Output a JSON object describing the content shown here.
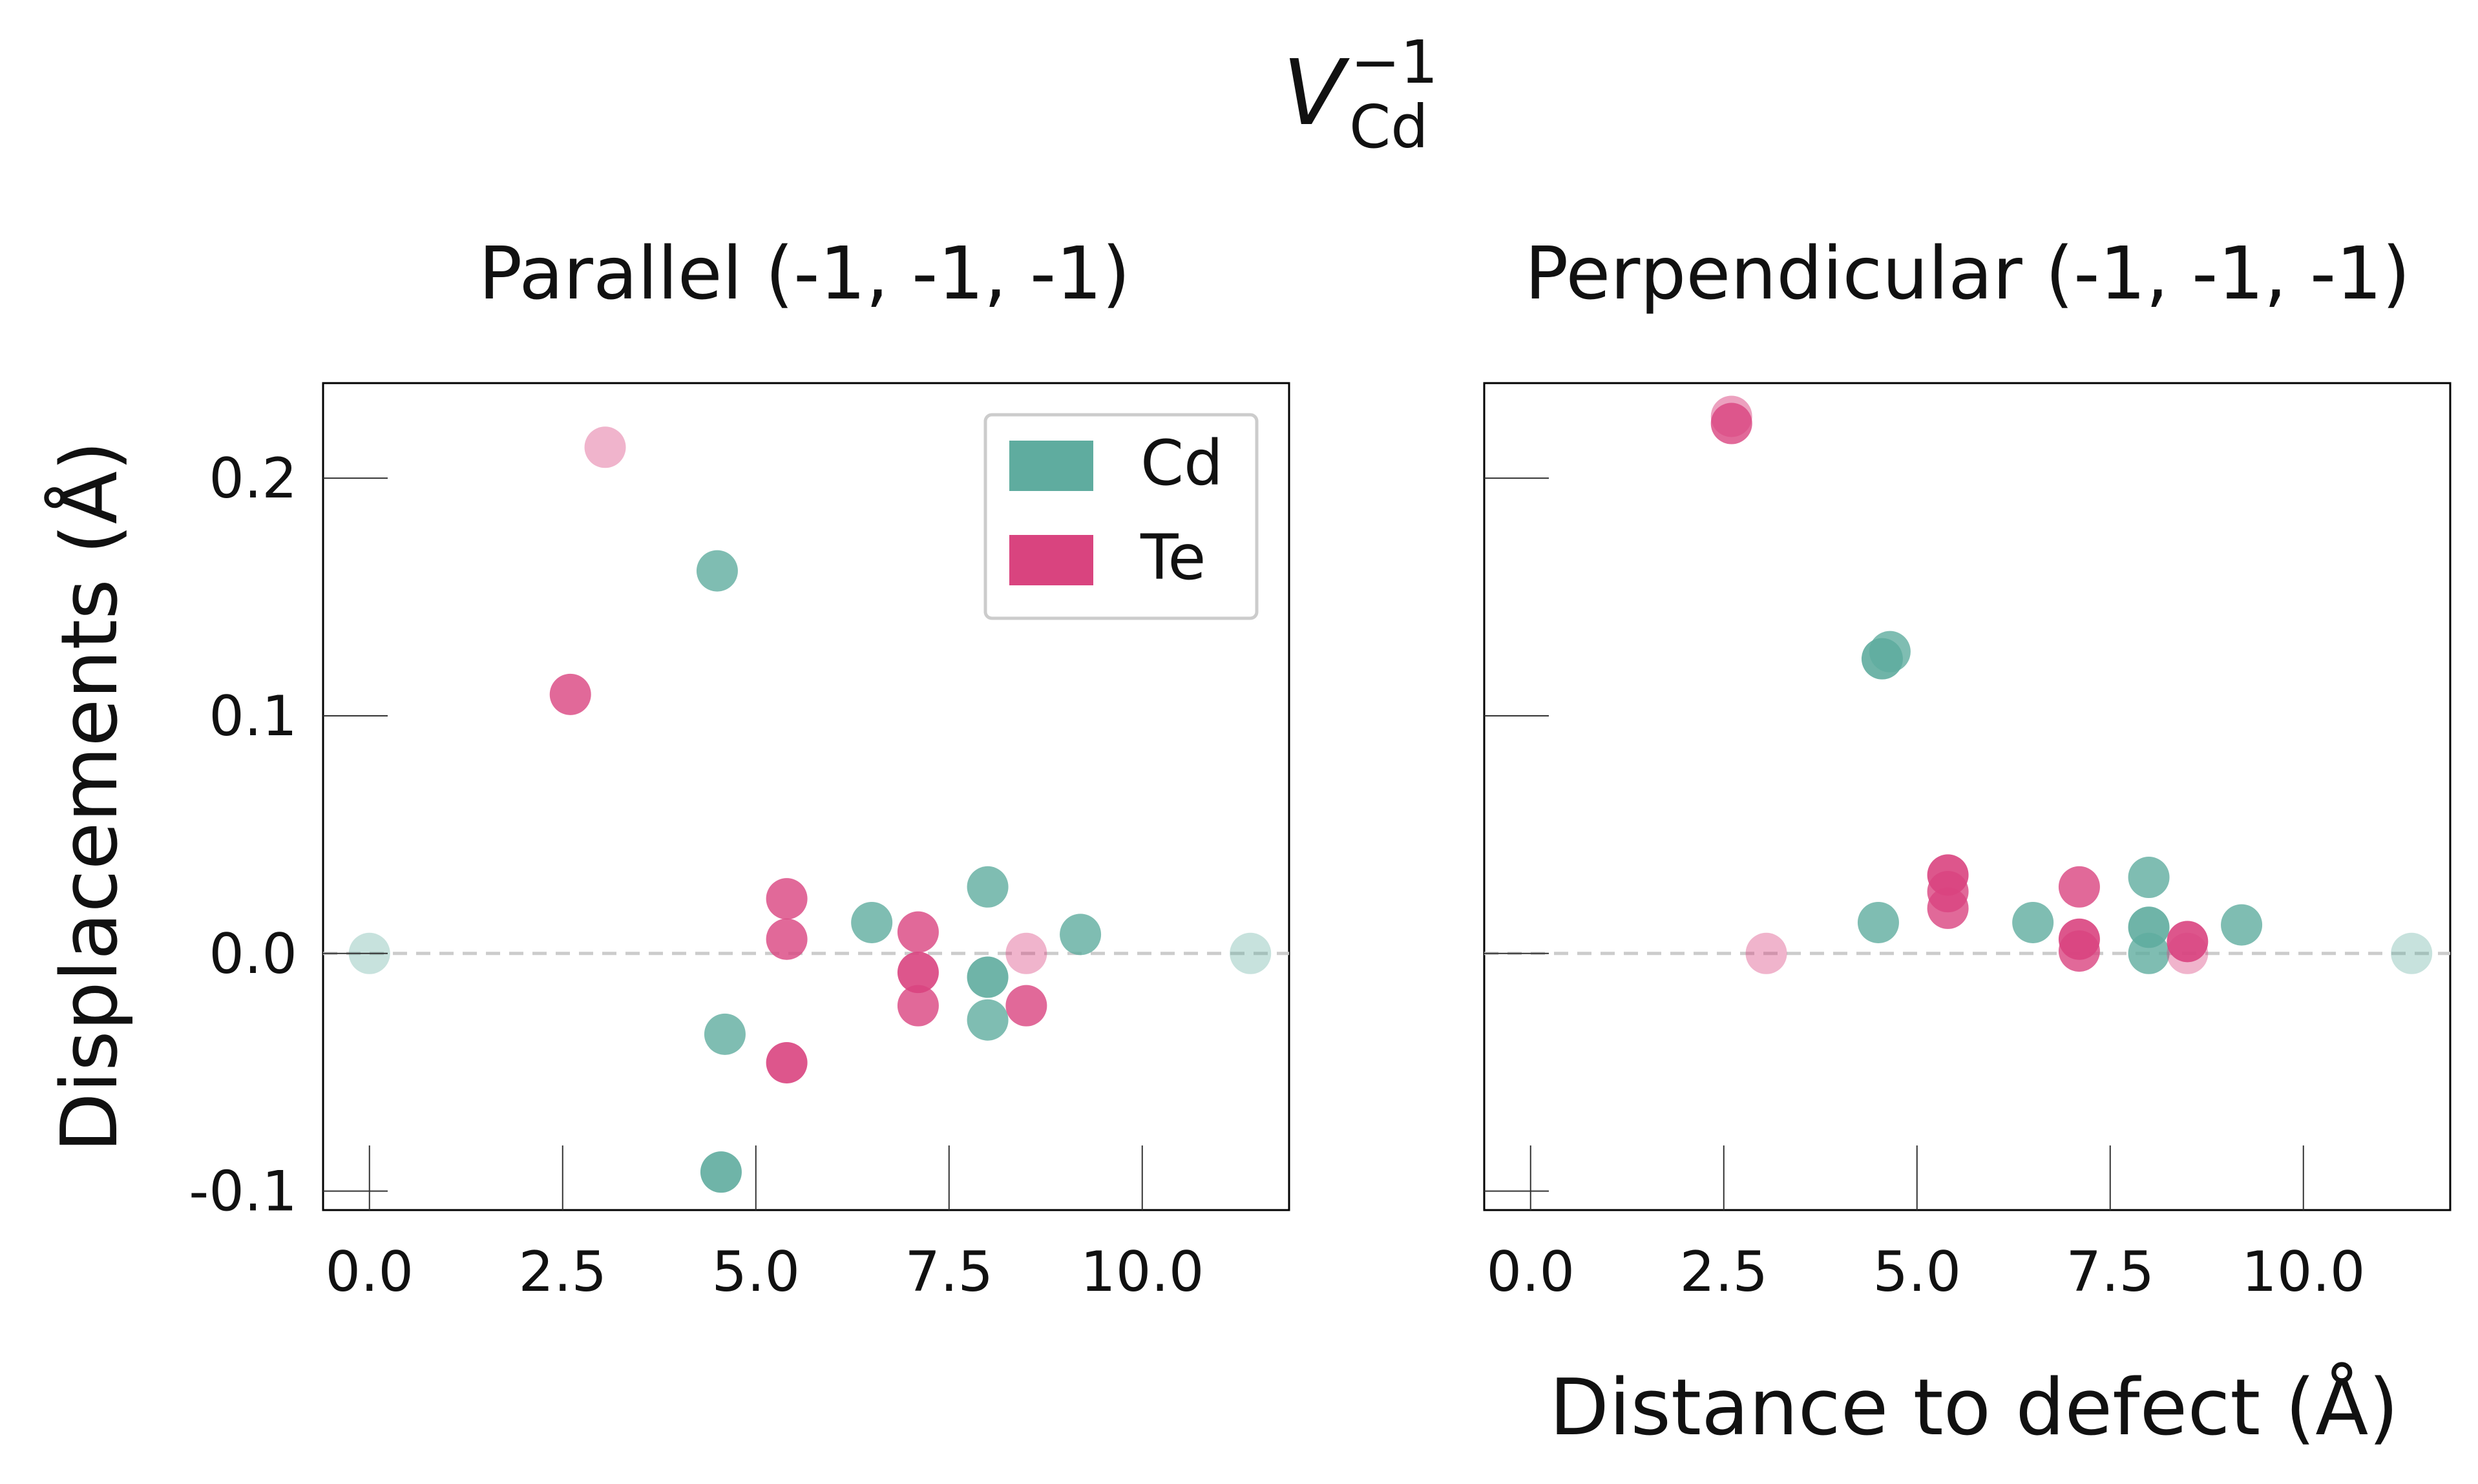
{
  "figure": {
    "title_main": "V",
    "title_sup": "−1",
    "title_sub": "Cd",
    "xlabel": "Distance to defect (Å)",
    "ylabel": "Displacements (Å)"
  },
  "colors": {
    "Cd": "#5fac9f",
    "Te": "#d9447f",
    "zero_line": "#cccccc",
    "axis": "#000000"
  },
  "legend": {
    "placement": "upper-right",
    "entries": [
      {
        "label": "Cd",
        "color": "#5fac9f"
      },
      {
        "label": "Te",
        "color": "#d9447f"
      }
    ]
  },
  "chart_data": [
    {
      "type": "scatter",
      "title": "Parallel (-1, -1, -1)",
      "xlim": [
        -0.6,
        11.9
      ],
      "ylim": [
        -0.108,
        0.24
      ],
      "xticks": [
        0.0,
        2.5,
        5.0,
        7.5,
        10.0
      ],
      "xtick_labels": [
        "0.0",
        "2.5",
        "5.0",
        "7.5",
        "10.0"
      ],
      "yticks": [
        0.2,
        0.1,
        0.0,
        -0.1
      ],
      "ytick_labels": [
        "0.2",
        "0.1",
        "0.0",
        "-0.1"
      ],
      "series": [
        {
          "name": "Cd",
          "points": [
            {
              "x": 0.0,
              "y": 0.0,
              "alpha": 0.35
            },
            {
              "x": 4.5,
              "y": 0.161,
              "alpha": 0.8
            },
            {
              "x": 4.6,
              "y": -0.034,
              "alpha": 0.8
            },
            {
              "x": 4.55,
              "y": -0.092,
              "alpha": 0.9
            },
            {
              "x": 6.5,
              "y": 0.013,
              "alpha": 0.8
            },
            {
              "x": 8.0,
              "y": 0.028,
              "alpha": 0.8
            },
            {
              "x": 8.0,
              "y": -0.01,
              "alpha": 0.9
            },
            {
              "x": 8.0,
              "y": -0.028,
              "alpha": 0.8
            },
            {
              "x": 9.2,
              "y": 0.008,
              "alpha": 0.8
            },
            {
              "x": 11.4,
              "y": 0.0,
              "alpha": 0.35
            }
          ]
        },
        {
          "name": "Te",
          "points": [
            {
              "x": 3.05,
              "y": 0.213,
              "alpha": 0.4
            },
            {
              "x": 2.6,
              "y": 0.109,
              "alpha": 0.8
            },
            {
              "x": 5.4,
              "y": 0.023,
              "alpha": 0.8
            },
            {
              "x": 5.4,
              "y": 0.006,
              "alpha": 0.8
            },
            {
              "x": 5.4,
              "y": -0.046,
              "alpha": 0.9
            },
            {
              "x": 7.1,
              "y": 0.009,
              "alpha": 0.8
            },
            {
              "x": 7.1,
              "y": -0.008,
              "alpha": 0.9
            },
            {
              "x": 7.1,
              "y": -0.022,
              "alpha": 0.8
            },
            {
              "x": 8.5,
              "y": 0.0,
              "alpha": 0.4
            },
            {
              "x": 8.5,
              "y": -0.022,
              "alpha": 0.8
            }
          ]
        }
      ]
    },
    {
      "type": "scatter",
      "title": "Perpendicular (-1, -1, -1)",
      "xlim": [
        -0.6,
        11.9
      ],
      "ylim": [
        -0.108,
        0.24
      ],
      "xticks": [
        0.0,
        2.5,
        5.0,
        7.5,
        10.0
      ],
      "xtick_labels": [
        "0.0",
        "2.5",
        "5.0",
        "7.5",
        "10.0"
      ],
      "yticks": [
        0.2,
        0.1,
        0.0,
        -0.1
      ],
      "ytick_labels": [
        "",
        "",
        "",
        ""
      ],
      "series": [
        {
          "name": "Cd",
          "points": [
            {
              "x": 4.55,
              "y": 0.124,
              "alpha": 0.9
            },
            {
              "x": 4.65,
              "y": 0.127,
              "alpha": 0.8
            },
            {
              "x": 4.5,
              "y": 0.013,
              "alpha": 0.8
            },
            {
              "x": 6.5,
              "y": 0.013,
              "alpha": 0.8
            },
            {
              "x": 8.0,
              "y": 0.032,
              "alpha": 0.8
            },
            {
              "x": 8.0,
              "y": 0.011,
              "alpha": 0.9
            },
            {
              "x": 8.0,
              "y": 0.0,
              "alpha": 0.8
            },
            {
              "x": 9.2,
              "y": 0.012,
              "alpha": 0.8
            },
            {
              "x": 11.4,
              "y": 0.0,
              "alpha": 0.35
            }
          ]
        },
        {
          "name": "Te",
          "points": [
            {
              "x": 2.6,
              "y": 0.226,
              "alpha": 0.5
            },
            {
              "x": 2.6,
              "y": 0.223,
              "alpha": 0.8
            },
            {
              "x": 3.05,
              "y": 0.0,
              "alpha": 0.4
            },
            {
              "x": 5.4,
              "y": 0.033,
              "alpha": 0.9
            },
            {
              "x": 5.4,
              "y": 0.026,
              "alpha": 0.8
            },
            {
              "x": 5.4,
              "y": 0.019,
              "alpha": 0.8
            },
            {
              "x": 7.1,
              "y": 0.028,
              "alpha": 0.8
            },
            {
              "x": 7.1,
              "y": 0.006,
              "alpha": 0.9
            },
            {
              "x": 7.1,
              "y": 0.001,
              "alpha": 0.8
            },
            {
              "x": 8.5,
              "y": 0.005,
              "alpha": 0.9
            },
            {
              "x": 8.5,
              "y": 0.0,
              "alpha": 0.4
            }
          ]
        }
      ]
    }
  ]
}
